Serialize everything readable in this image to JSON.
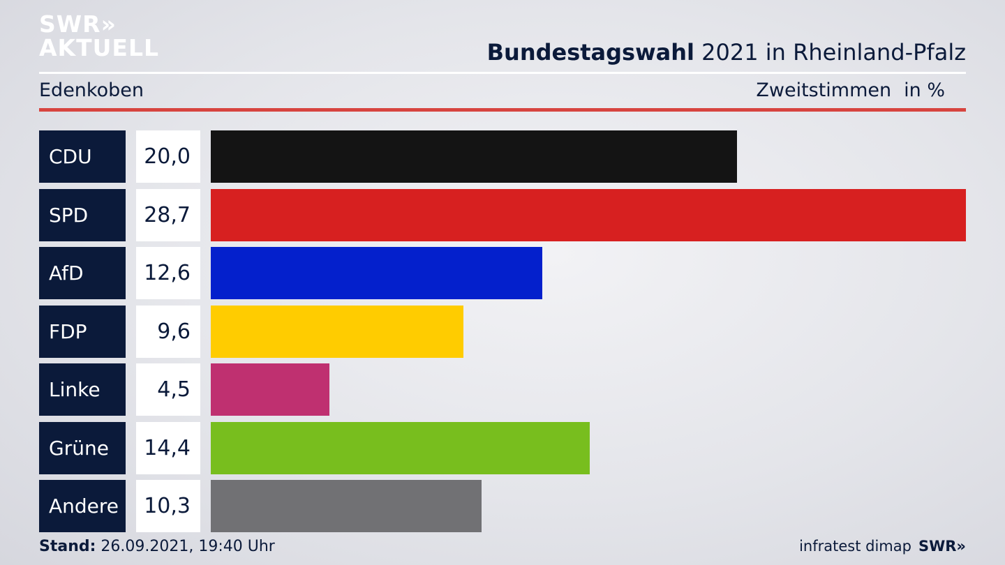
{
  "logo": {
    "line1": "SWR»",
    "line2": "AKTUELL"
  },
  "header": {
    "title_bold": "Bundestagswahl",
    "title_rest": " 2021 in Rheinland-Pfalz"
  },
  "subheader": {
    "region": "Edenkoben",
    "vote_type": "Zweitstimmen",
    "unit": "in %"
  },
  "chart_data": {
    "type": "bar",
    "categories": [
      "CDU",
      "SPD",
      "AfD",
      "FDP",
      "Linke",
      "Grüne",
      "Andere"
    ],
    "values": [
      20.0,
      28.7,
      12.6,
      9.6,
      4.5,
      14.4,
      10.3
    ],
    "value_labels": [
      "20,0",
      "28,7",
      "12,6",
      "9,6",
      "4,5",
      "14,4",
      "10,3"
    ],
    "colors": [
      "#141414",
      "#d72020",
      "#0420cc",
      "#ffcc00",
      "#bf3070",
      "#78be1e",
      "#717174"
    ],
    "title": "Bundestagswahl 2021 in Rheinland-Pfalz",
    "xlim": [
      0,
      28.7
    ]
  },
  "footer": {
    "stand_label": "Stand:",
    "stand_value": " 26.09.2021, 19:40 Uhr",
    "source": "infratest dimap",
    "brand": "SWR»"
  }
}
